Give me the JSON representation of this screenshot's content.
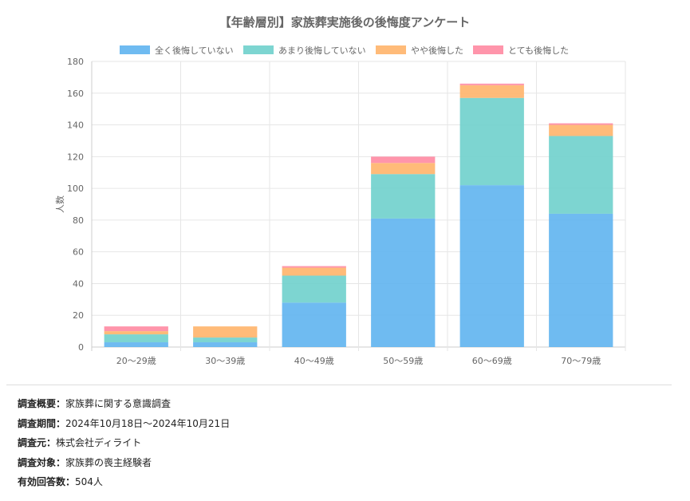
{
  "chart_data": {
    "type": "bar",
    "stacked": true,
    "title": "【年齢層別】家族葬実施後の後悔度アンケート",
    "ylabel": "人数",
    "xlabel": "",
    "categories": [
      "20〜29歳",
      "30〜39歳",
      "40〜49歳",
      "50〜59歳",
      "60〜69歳",
      "70〜79歳"
    ],
    "ylim": [
      0,
      180
    ],
    "yticks": [
      0,
      20,
      40,
      60,
      80,
      100,
      120,
      140,
      160,
      180
    ],
    "grid": true,
    "legend_position": "top",
    "series": [
      {
        "name": "全く後悔していない",
        "color": "#5fb4f0",
        "values": [
          3,
          3,
          28,
          81,
          102,
          84
        ]
      },
      {
        "name": "あまり後悔していない",
        "color": "#6fd0cc",
        "values": [
          5,
          3,
          17,
          28,
          55,
          49
        ]
      },
      {
        "name": "やや後悔した",
        "color": "#ffb46a",
        "values": [
          2,
          7,
          5,
          7,
          8,
          7
        ]
      },
      {
        "name": "とても後悔した",
        "color": "#ff8aa2",
        "values": [
          3,
          0,
          1,
          4,
          1,
          1
        ]
      }
    ]
  },
  "survey": [
    {
      "label": "調査概要",
      "value": "家族葬に関する意識調査"
    },
    {
      "label": "調査期間",
      "value": "2024年10月18日〜2024年10月21日"
    },
    {
      "label": "調査元",
      "value": "株式会社ディライト"
    },
    {
      "label": "調査対象",
      "value": "家族葬の喪主経験者"
    },
    {
      "label": "有効回答数",
      "value": "504人"
    }
  ],
  "survey_separator": "："
}
